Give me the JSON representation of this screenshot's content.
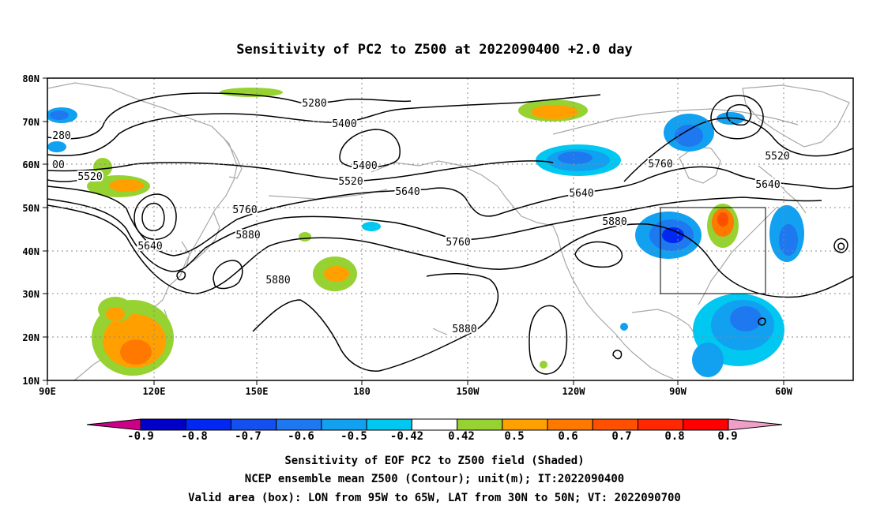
{
  "title": "Sensitivity of PC2 to Z500 at 2022090400 +2.0 day",
  "lat_labels": [
    "80N",
    "70N",
    "60N",
    "50N",
    "40N",
    "30N",
    "20N",
    "10N"
  ],
  "lon_labels": [
    "90E",
    "120E",
    "150E",
    "180",
    "150W",
    "120W",
    "90W",
    "60W"
  ],
  "contour_labels": [
    "5280",
    "5400",
    "5400",
    "5520",
    "5520",
    "5520",
    "5640",
    "5640",
    "5640",
    "5640",
    "5760",
    "5760",
    "5760",
    "5880",
    "5880",
    "5880",
    "5880",
    "280",
    "00"
  ],
  "colorbar": {
    "labels": [
      "-0.9",
      "-0.8",
      "-0.7",
      "-0.6",
      "-0.5",
      "-0.42",
      "0.42",
      "0.5",
      "0.6",
      "0.7",
      "0.8",
      "0.9"
    ],
    "colors": [
      "#cc0088",
      "#0000c8",
      "#0028f0",
      "#1450f0",
      "#1e78f0",
      "#12a0f0",
      "#00c8f0",
      "#ffffff",
      "#96d232",
      "#ffa000",
      "#ff7800",
      "#ff5000",
      "#ff2800",
      "#ff0000",
      "#f0a0c8"
    ]
  },
  "footer": {
    "line1": "Sensitivity of EOF PC2 to Z500 field (Shaded)",
    "line2": "NCEP ensemble mean Z500 (Contour); unit(m); IT:2022090400",
    "line3": "Valid area (box): LON from 95W to 65W, LAT from 30N to 50N; VT: 2022090700"
  }
}
